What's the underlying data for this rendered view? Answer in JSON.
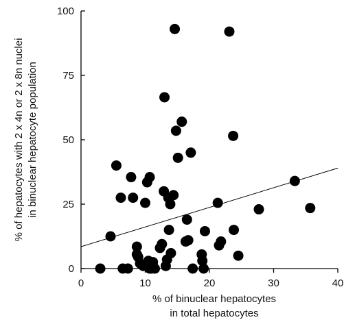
{
  "chart_data": {
    "type": "scatter",
    "title": "",
    "xlabel": [
      "% of binuclear hepatocytes",
      "in total hepatocytes"
    ],
    "ylabel": [
      "% of hepatocytes with 2 x 4n or 2 x 8n nuclei",
      "in binuclear hepatocyte population"
    ],
    "xlim": [
      0,
      40
    ],
    "ylim": [
      0,
      100
    ],
    "x_ticks": [
      "0",
      "10",
      "20",
      "30",
      "40"
    ],
    "y_ticks": [
      "0",
      "25",
      "50",
      "75",
      "100"
    ],
    "grid": false,
    "legend": "none",
    "points": [
      {
        "x": 3.0,
        "y": 0
      },
      {
        "x": 4.6,
        "y": 12.5
      },
      {
        "x": 5.5,
        "y": 40
      },
      {
        "x": 6.2,
        "y": 27.5
      },
      {
        "x": 6.5,
        "y": 0
      },
      {
        "x": 7.3,
        "y": 0
      },
      {
        "x": 7.8,
        "y": 35.5
      },
      {
        "x": 8.1,
        "y": 27.5
      },
      {
        "x": 8.7,
        "y": 8.5
      },
      {
        "x": 8.7,
        "y": 5.5
      },
      {
        "x": 8.9,
        "y": 4.5
      },
      {
        "x": 9.2,
        "y": 2
      },
      {
        "x": 9.7,
        "y": 1
      },
      {
        "x": 10.0,
        "y": 25.5
      },
      {
        "x": 10.3,
        "y": 33.5
      },
      {
        "x": 10.7,
        "y": 35.5
      },
      {
        "x": 10.5,
        "y": 3
      },
      {
        "x": 10.7,
        "y": 0
      },
      {
        "x": 11.2,
        "y": 2.5
      },
      {
        "x": 11.0,
        "y": 0
      },
      {
        "x": 11.5,
        "y": 0
      },
      {
        "x": 12.3,
        "y": 8
      },
      {
        "x": 12.6,
        "y": 9.5
      },
      {
        "x": 12.9,
        "y": 30
      },
      {
        "x": 13.0,
        "y": 66.5
      },
      {
        "x": 13.2,
        "y": 1
      },
      {
        "x": 13.4,
        "y": 3.5
      },
      {
        "x": 13.7,
        "y": 15
      },
      {
        "x": 13.6,
        "y": 27.5
      },
      {
        "x": 13.9,
        "y": 25
      },
      {
        "x": 14.0,
        "y": 6
      },
      {
        "x": 14.4,
        "y": 28.5
      },
      {
        "x": 14.8,
        "y": 53.5
      },
      {
        "x": 14.6,
        "y": 93
      },
      {
        "x": 15.1,
        "y": 43
      },
      {
        "x": 15.7,
        "y": 57
      },
      {
        "x": 16.3,
        "y": 10.5
      },
      {
        "x": 16.5,
        "y": 19
      },
      {
        "x": 16.7,
        "y": 11
      },
      {
        "x": 17.1,
        "y": 45
      },
      {
        "x": 17.4,
        "y": 0
      },
      {
        "x": 18.8,
        "y": 5.5
      },
      {
        "x": 18.9,
        "y": 3
      },
      {
        "x": 19.1,
        "y": 0
      },
      {
        "x": 19.3,
        "y": 14.5
      },
      {
        "x": 21.3,
        "y": 25.5
      },
      {
        "x": 21.5,
        "y": 9
      },
      {
        "x": 21.8,
        "y": 10.5
      },
      {
        "x": 23.1,
        "y": 92
      },
      {
        "x": 23.7,
        "y": 51.5
      },
      {
        "x": 23.8,
        "y": 15
      },
      {
        "x": 24.5,
        "y": 5
      },
      {
        "x": 27.7,
        "y": 23
      },
      {
        "x": 33.3,
        "y": 34
      },
      {
        "x": 35.7,
        "y": 23.5
      }
    ],
    "trendline": {
      "x": [
        0,
        40
      ],
      "y": [
        8.5,
        39
      ]
    },
    "colors": {
      "points": "#000000",
      "axes": "#000000",
      "background": "#ffffff"
    }
  }
}
